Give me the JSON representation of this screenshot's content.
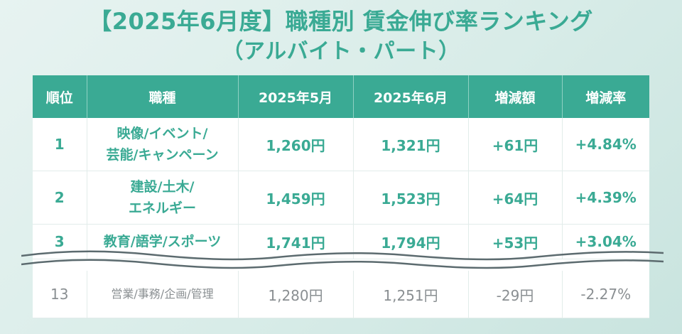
{
  "title": {
    "line1": "【2025年6月度】職種別 賃金伸び率ランキング",
    "line2": "（アルバイト・パート）"
  },
  "table": {
    "headers": [
      "順位",
      "職種",
      "2025年5月",
      "2025年6月",
      "増減額",
      "増減率"
    ],
    "rows": [
      {
        "rank": "1",
        "job_line1": "映像/イベント/",
        "job_line2": "芸能/キャンペーン",
        "may": "1,260円",
        "june": "1,321円",
        "diff": "+61円",
        "rate": "+4.84%"
      },
      {
        "rank": "2",
        "job_line1": "建設/土木/",
        "job_line2": "エネルギー",
        "may": "1,459円",
        "june": "1,523円",
        "diff": "+64円",
        "rate": "+4.39%"
      },
      {
        "rank": "3",
        "job_line1": "教育/語学/スポーツ",
        "job_line2": "",
        "may": "1,741円",
        "june": "1,794円",
        "diff": "+53円",
        "rate": "+3.04%"
      },
      {
        "rank": "13",
        "job_line1": "営業/事務/企画/管理",
        "job_line2": "",
        "may": "1,280円",
        "june": "1,251円",
        "diff": "-29円",
        "rate": "-2.27%"
      }
    ]
  },
  "colors": {
    "accent": "#3aaa94",
    "muted_text": "#8a8f92",
    "break_line": "#5c6b6f"
  }
}
